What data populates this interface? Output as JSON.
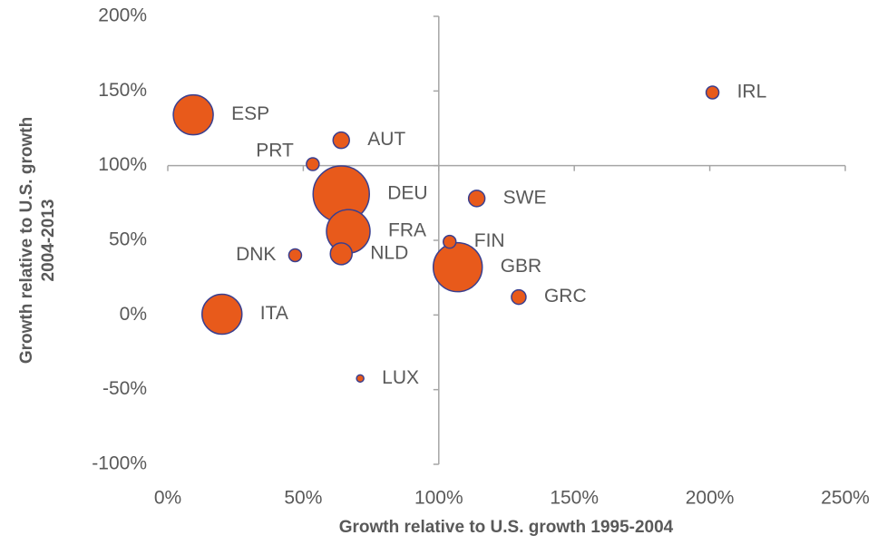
{
  "chart_data": {
    "type": "bubble",
    "xlabel": "Growth relative to U.S. growth 1995-2004",
    "ylabel": [
      "Growth relative to U.S. growth",
      "2004-2013"
    ],
    "labels": [
      "ESP",
      "AUT",
      "PRT",
      "DEU",
      "SWE",
      "FRA",
      "FIN",
      "DNK",
      "NLD",
      "GBR",
      "GRC",
      "ITA",
      "LUX",
      "IRL"
    ],
    "x": [
      9.4,
      64,
      53.5,
      64,
      114,
      66.6,
      104,
      47,
      64,
      107,
      129.5,
      20,
      71,
      201
    ],
    "values": [
      134,
      117,
      101,
      81,
      78,
      56,
      49,
      40,
      41,
      32,
      12,
      0.5,
      -42.5,
      149
    ],
    "sizes": [
      484,
      81,
      49,
      961,
      81,
      576,
      49,
      49,
      144,
      729,
      64,
      484,
      16,
      49
    ],
    "color": "#e85a1b",
    "edgecolor": "#3a3f8f",
    "xlim": [
      0,
      250
    ],
    "ylim": [
      -100,
      200
    ],
    "xcross": 100,
    "ycross": 100,
    "xticks": [
      {
        "value": 0,
        "label": "0%"
      },
      {
        "value": 50,
        "label": "50%"
      },
      {
        "value": 100,
        "label": "100%"
      },
      {
        "value": 150,
        "label": "150%"
      },
      {
        "value": 200,
        "label": "200%"
      },
      {
        "value": 250,
        "label": "250%"
      }
    ],
    "yticks": [
      {
        "value": -100,
        "label": "-100%"
      },
      {
        "value": -50,
        "label": "-50%"
      },
      {
        "value": 0,
        "label": "0%"
      },
      {
        "value": 50,
        "label": "50%"
      },
      {
        "value": 100,
        "label": "100%"
      },
      {
        "value": 150,
        "label": "150%"
      },
      {
        "value": 200,
        "label": "200%"
      }
    ]
  }
}
